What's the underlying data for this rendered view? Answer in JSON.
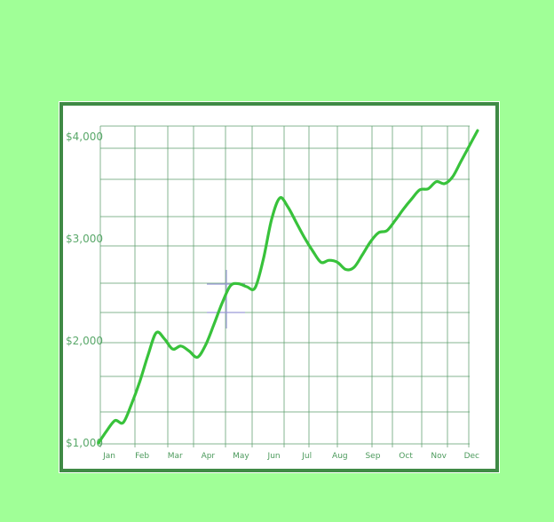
{
  "colors": {
    "background": "#a0ff97",
    "frame": "#3f8a45",
    "grid": "#5b9e6b",
    "line": "#38c23b",
    "crosshair": "#9b9bd6"
  },
  "chart_data": {
    "type": "line",
    "title": "",
    "xlabel": "",
    "ylabel": "",
    "categories": [
      "Jan",
      "Feb",
      "Mar",
      "Apr",
      "May",
      "Jun",
      "Jul",
      "Aug",
      "Sep",
      "Oct",
      "Nov",
      "Dec"
    ],
    "ylim": [
      1000,
      4000
    ],
    "yticks": [
      {
        "value": 1000,
        "label": "$1,000"
      },
      {
        "value": 2000,
        "label": "$2,000"
      },
      {
        "value": 3000,
        "label": "$3,000"
      },
      {
        "value": 4000,
        "label": "$4,000"
      }
    ],
    "grid": true,
    "series": [
      {
        "name": "",
        "x": [
          0.0,
          0.25,
          0.5,
          0.75,
          1.0,
          1.25,
          1.5,
          1.75,
          2.0,
          2.25,
          2.5,
          2.75,
          3.0,
          3.25,
          3.5,
          3.75,
          4.0,
          4.25,
          4.5,
          4.75,
          5.0,
          5.25,
          5.5,
          5.75,
          6.0,
          6.25,
          6.5,
          6.75,
          7.0,
          7.25,
          7.5,
          7.75,
          8.0,
          8.25,
          8.5,
          8.75,
          9.0,
          9.25,
          9.5,
          9.75,
          10.0,
          10.25,
          10.5,
          10.75,
          11.0,
          11.25,
          11.5
        ],
        "values": [
          1000,
          1120,
          1220,
          1200,
          1380,
          1600,
          1860,
          2080,
          2020,
          1920,
          1950,
          1900,
          1840,
          1960,
          2160,
          2370,
          2540,
          2560,
          2530,
          2520,
          2800,
          3190,
          3400,
          3310,
          3160,
          3010,
          2880,
          2770,
          2790,
          2770,
          2700,
          2720,
          2840,
          2970,
          3060,
          3080,
          3180,
          3290,
          3390,
          3480,
          3490,
          3560,
          3540,
          3610,
          3760,
          3910,
          4060
        ]
      }
    ]
  }
}
